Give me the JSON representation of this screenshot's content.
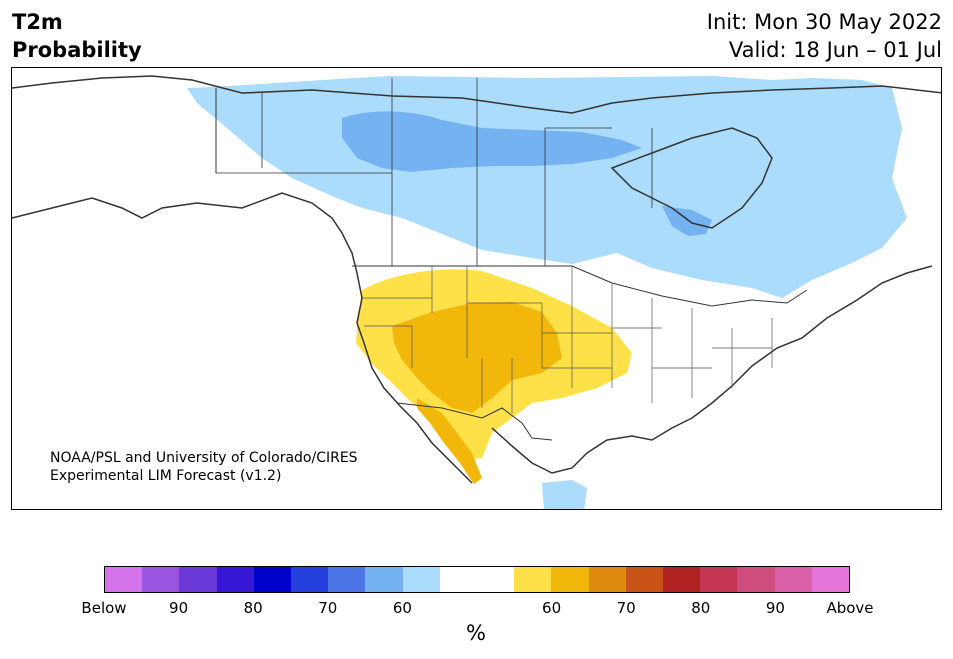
{
  "header": {
    "title_line1": "T2m",
    "title_line2": "Probability",
    "init_label": "Init: Mon 30 May 2022",
    "valid_label": "Valid: 18 Jun – 01 Jul"
  },
  "map": {
    "credit_line1": "NOAA/PSL and University of Colorado/CIRES",
    "credit_line2": "Experimental LIM Forecast (v1.2)",
    "region": "North America",
    "regions": [
      {
        "category": "below-60",
        "color": "#abdcfc",
        "area": "Canada, southern Alaska border, Great Lakes, New England, Gulf of California outflow"
      },
      {
        "category": "below-70",
        "color": "#75b2f2",
        "area": "central Canada, Hudson Bay area, southeast Hudson Bay"
      },
      {
        "category": "above-60",
        "color": "#fee148",
        "area": "Western US, Plains, northern Mexico"
      },
      {
        "category": "above-70",
        "color": "#f1b70b",
        "area": "Great Basin, Four Corners, Rockies, Baja California"
      }
    ]
  },
  "colorbar": {
    "colors": [
      "#d574ea",
      "#9a55e2",
      "#6a39d8",
      "#3717d6",
      "#0000cd",
      "#243fdc",
      "#4d75e8",
      "#75b2f2",
      "#abdcfc",
      "#ffffff",
      "#ffffff",
      "#fee148",
      "#f1b70b",
      "#df8b0d",
      "#c95316",
      "#b02222",
      "#c43653",
      "#cf4d7d",
      "#da5fa9",
      "#e474d8"
    ],
    "tick_labels": [
      "Below",
      "90",
      "80",
      "70",
      "60",
      "60",
      "70",
      "80",
      "90",
      "Above"
    ],
    "unit_label": "%"
  }
}
